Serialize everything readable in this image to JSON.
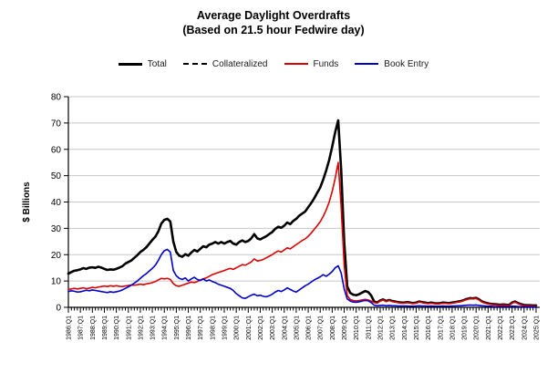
{
  "title": "Average Daylight Overdrafts",
  "subtitle": "(Based on 21.5 hour Fedwire day)",
  "chart_data": {
    "type": "line",
    "title": "Average Daylight Overdrafts",
    "subtitle": "(Based on 21.5 hour Fedwire day)",
    "ylabel": "$ Billions",
    "xlabel": "",
    "ylim": [
      0,
      80
    ],
    "yticks": [
      0,
      10,
      20,
      30,
      40,
      50,
      60,
      70,
      80
    ],
    "grid": "horizontal-gray-lines",
    "legend_position": "top-center",
    "x_unit": "quarterly, 1986:Q1 through 2025:Q1, minor tick every quarter, year label at each Q1",
    "x_tick_labels": [
      "1986:Q1",
      "1987:Q1",
      "1988:Q1",
      "1989:Q1",
      "1990:Q1",
      "1991:Q1",
      "1992:Q1",
      "1993:Q1",
      "1994:Q1",
      "1995:Q1",
      "1996:Q1",
      "1997:Q1",
      "1998:Q1",
      "1999:Q1",
      "2000:Q1",
      "2001:Q1",
      "2002:Q1",
      "2003:Q1",
      "2004:Q1",
      "2005:Q1",
      "2006:Q1",
      "2007:Q1",
      "2008:Q1",
      "2009:Q1",
      "2010:Q1",
      "2011:Q1",
      "2012:Q1",
      "2013:Q1",
      "2014:Q1",
      "2015:Q1",
      "2016:Q1",
      "2017:Q1",
      "2018:Q1",
      "2019:Q1",
      "2020:Q1",
      "2021:Q1",
      "2022:Q1",
      "2023:Q1",
      "2024:Q1",
      "2025:Q1"
    ],
    "colors": {
      "total": "#000000",
      "collateralized": "#000000",
      "funds": "#dd0000",
      "book_entry": "#0000cc",
      "grid": "#c8c8c8",
      "axis": "#000000"
    },
    "series": [
      {
        "name": "Total",
        "color": "#000000",
        "style": "solid",
        "width": 2.6,
        "values": [
          12.8,
          13.4,
          13.9,
          14.1,
          14.4,
          14.9,
          14.6,
          15.1,
          15.2,
          15.0,
          15.4,
          15.1,
          14.6,
          14.2,
          14.4,
          14.3,
          14.6,
          15.1,
          15.6,
          16.6,
          17.2,
          17.8,
          18.8,
          19.8,
          21.0,
          21.8,
          22.8,
          24.2,
          25.6,
          26.8,
          28.8,
          31.8,
          33.2,
          33.6,
          32.6,
          25.0,
          21.0,
          19.6,
          19.2,
          20.2,
          19.6,
          20.8,
          21.8,
          21.2,
          22.2,
          23.2,
          22.8,
          23.8,
          24.2,
          24.8,
          24.2,
          24.8,
          24.2,
          24.8,
          25.2,
          24.2,
          23.8,
          24.8,
          25.4,
          24.8,
          25.2,
          26.2,
          27.8,
          26.2,
          25.8,
          26.4,
          27.0,
          27.8,
          28.6,
          29.8,
          30.6,
          30.2,
          31.0,
          32.2,
          31.6,
          32.8,
          33.6,
          34.8,
          35.6,
          36.4,
          38.0,
          39.6,
          41.4,
          43.5,
          45.5,
          48.5,
          52.0,
          56.0,
          61.0,
          66.5,
          71.0,
          52.0,
          25.0,
          8.0,
          5.5,
          4.8,
          4.6,
          5.0,
          5.6,
          6.2,
          5.8,
          4.5,
          2.2,
          1.8,
          2.6,
          3.0,
          2.4,
          2.8,
          2.4,
          2.2,
          2.0,
          1.8,
          1.8,
          2.0,
          1.8,
          1.6,
          1.8,
          2.2,
          2.0,
          1.8,
          1.6,
          1.8,
          1.6,
          1.5,
          1.6,
          1.8,
          1.7,
          1.6,
          1.8,
          2.0,
          2.2,
          2.4,
          2.8,
          3.2,
          3.5,
          3.4,
          3.6,
          3.0,
          2.2,
          1.8,
          1.5,
          1.3,
          1.2,
          1.1,
          1.0,
          1.1,
          1.0,
          0.9,
          1.8,
          2.2,
          1.6,
          1.2,
          0.9,
          0.8,
          0.8,
          0.7,
          0.7
        ]
      },
      {
        "name": "Collateralized",
        "color": "#000000",
        "style": "dashed",
        "width": 1.6,
        "values": [
          null,
          null,
          null,
          null,
          null,
          null,
          null,
          null,
          null,
          null,
          null,
          null,
          null,
          null,
          null,
          null,
          null,
          null,
          null,
          null,
          null,
          null,
          null,
          null,
          null,
          null,
          null,
          null,
          null,
          null,
          null,
          null,
          null,
          null,
          null,
          null,
          null,
          null,
          null,
          null,
          null,
          null,
          null,
          null,
          null,
          null,
          null,
          null,
          null,
          null,
          null,
          null,
          null,
          null,
          null,
          null,
          null,
          null,
          null,
          null,
          null,
          null,
          null,
          null,
          null,
          null,
          null,
          null,
          null,
          null,
          null,
          null,
          null,
          null,
          null,
          null,
          null,
          null,
          null,
          null,
          null,
          null,
          null,
          null,
          null,
          null,
          null,
          null,
          null,
          null,
          null,
          null,
          null,
          null,
          null,
          null,
          null,
          null,
          null,
          null,
          null,
          null,
          2.1,
          1.7,
          2.5,
          2.9,
          2.3,
          2.7,
          2.3,
          2.1,
          1.9,
          1.7,
          1.7,
          1.9,
          1.7,
          1.5,
          1.7,
          2.1,
          1.9,
          1.7,
          1.5,
          1.7,
          1.5,
          1.4,
          1.5,
          1.7,
          1.6,
          1.5,
          1.7,
          1.9,
          2.1,
          2.3,
          2.7,
          3.1,
          3.4,
          3.3,
          3.5,
          2.9,
          2.1,
          1.7,
          1.4,
          1.2,
          1.1,
          1.0,
          0.9,
          1.0,
          0.9,
          0.8,
          1.7,
          2.1,
          1.5,
          1.1,
          0.8,
          0.7,
          0.7,
          0.6,
          0.6
        ]
      },
      {
        "name": "Funds",
        "color": "#dd0000",
        "style": "solid",
        "width": 1.6,
        "values": [
          6.8,
          7.0,
          7.2,
          7.0,
          7.2,
          7.4,
          7.1,
          7.3,
          7.6,
          7.4,
          7.7,
          7.9,
          8.1,
          7.9,
          8.2,
          8.0,
          8.2,
          8.0,
          7.9,
          8.1,
          8.3,
          8.5,
          8.4,
          8.6,
          8.8,
          8.6,
          8.9,
          9.1,
          9.4,
          9.8,
          10.4,
          11.0,
          10.8,
          11.0,
          10.6,
          9.0,
          8.2,
          8.0,
          8.4,
          8.8,
          9.2,
          9.6,
          9.4,
          9.8,
          10.4,
          10.8,
          11.2,
          11.8,
          12.4,
          12.8,
          13.2,
          13.6,
          14.0,
          14.4,
          14.8,
          14.4,
          15.0,
          15.6,
          16.2,
          16.0,
          16.6,
          17.2,
          18.4,
          17.6,
          17.8,
          18.2,
          18.8,
          19.4,
          20.0,
          20.8,
          21.4,
          21.0,
          21.8,
          22.6,
          22.2,
          23.0,
          23.8,
          24.6,
          25.4,
          26.0,
          27.0,
          28.2,
          29.6,
          31.0,
          32.5,
          34.5,
          37.0,
          40.0,
          44.0,
          49.0,
          55.0,
          38.0,
          16.0,
          4.5,
          3.0,
          2.6,
          2.4,
          2.6,
          2.8,
          3.0,
          2.8,
          2.4,
          1.8,
          1.6,
          2.4,
          2.8,
          2.2,
          2.6,
          2.2,
          2.0,
          1.8,
          1.6,
          1.6,
          1.8,
          1.6,
          1.4,
          1.6,
          2.0,
          1.8,
          1.6,
          1.4,
          1.6,
          1.4,
          1.3,
          1.4,
          1.6,
          1.5,
          1.4,
          1.6,
          1.8,
          2.0,
          2.2,
          2.6,
          3.0,
          3.3,
          3.2,
          3.4,
          2.8,
          2.0,
          1.6,
          1.3,
          1.1,
          1.0,
          0.9,
          0.8,
          0.9,
          0.8,
          0.7,
          1.6,
          2.0,
          1.4,
          1.0,
          0.7,
          0.6,
          0.6,
          0.5,
          0.5
        ]
      },
      {
        "name": "Book Entry",
        "color": "#0000cc",
        "style": "solid",
        "width": 1.6,
        "values": [
          6.0,
          6.3,
          6.1,
          5.8,
          5.9,
          6.2,
          6.5,
          6.3,
          6.6,
          6.4,
          6.2,
          6.0,
          5.8,
          5.6,
          5.9,
          5.7,
          5.9,
          6.2,
          6.6,
          7.2,
          7.8,
          8.4,
          9.2,
          10.0,
          11.0,
          12.0,
          12.8,
          13.8,
          14.8,
          16.0,
          17.8,
          20.0,
          21.5,
          22.0,
          21.0,
          14.0,
          12.0,
          11.0,
          10.6,
          11.2,
          10.0,
          10.8,
          11.4,
          10.6,
          10.2,
          10.8,
          10.0,
          10.4,
          9.8,
          9.4,
          8.8,
          8.4,
          8.0,
          7.6,
          7.2,
          6.4,
          5.2,
          4.4,
          3.6,
          3.4,
          4.0,
          4.6,
          5.0,
          4.4,
          4.6,
          4.2,
          4.0,
          4.4,
          5.0,
          5.8,
          6.4,
          6.0,
          6.6,
          7.4,
          6.8,
          6.2,
          5.8,
          6.6,
          7.4,
          8.2,
          8.8,
          9.6,
          10.4,
          11.0,
          11.6,
          12.4,
          11.8,
          12.6,
          13.6,
          15.0,
          15.8,
          13.0,
          7.0,
          3.2,
          2.4,
          2.0,
          1.9,
          2.1,
          2.4,
          2.6,
          2.5,
          1.8,
          0.8,
          0.6,
          0.7,
          0.8,
          0.6,
          0.7,
          0.6,
          0.6,
          0.5,
          0.5,
          0.5,
          0.5,
          0.4,
          0.4,
          0.5,
          0.6,
          0.5,
          0.5,
          0.4,
          0.5,
          0.4,
          0.4,
          0.4,
          0.5,
          0.4,
          0.4,
          0.5,
          0.5,
          0.6,
          0.6,
          0.7,
          0.8,
          0.9,
          0.8,
          0.9,
          0.7,
          0.6,
          0.5,
          0.4,
          0.4,
          0.3,
          0.3,
          0.3,
          0.3,
          0.3,
          0.3,
          0.4,
          0.4,
          0.3,
          0.3,
          0.3,
          0.2,
          0.2,
          0.2,
          0.2
        ]
      }
    ]
  }
}
